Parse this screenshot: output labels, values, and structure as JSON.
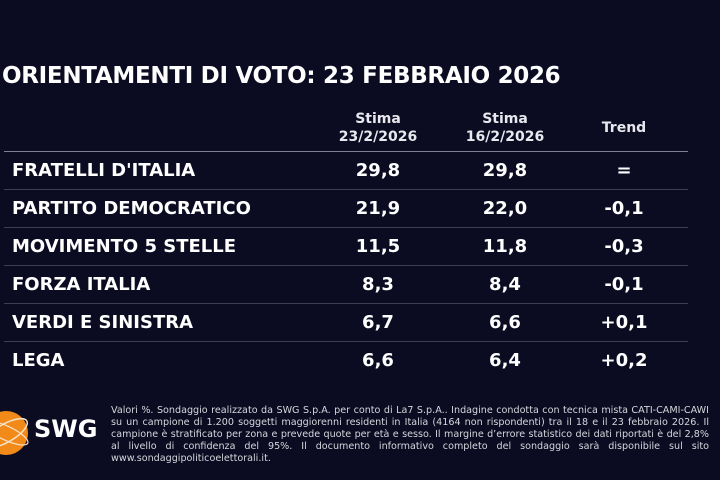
{
  "title": "ORIENTAMENTI DI VOTO: 23 FEBBRAIO 2026",
  "chart_data": {
    "type": "table",
    "columns": [
      {
        "line1": "Stima",
        "line2": "23/2/2026"
      },
      {
        "line1": "Stima",
        "line2": "16/2/2026"
      },
      {
        "line1": "Trend",
        "line2": ""
      }
    ],
    "rows": [
      {
        "party": "FRATELLI D'ITALIA",
        "current": "29,8",
        "previous": "29,8",
        "trend": "="
      },
      {
        "party": "PARTITO DEMOCRATICO",
        "current": "21,9",
        "previous": "22,0",
        "trend": "-0,1"
      },
      {
        "party": "MOVIMENTO 5 STELLE",
        "current": "11,5",
        "previous": "11,8",
        "trend": "-0,3"
      },
      {
        "party": "FORZA ITALIA",
        "current": "8,3",
        "previous": "8,4",
        "trend": "-0,1"
      },
      {
        "party": "VERDI E SINISTRA",
        "current": "6,7",
        "previous": "6,6",
        "trend": "+0,1"
      },
      {
        "party": "LEGA",
        "current": "6,6",
        "previous": "6,4",
        "trend": "+0,2"
      }
    ]
  },
  "logo": {
    "text": "SWG",
    "color": "#f28a1a"
  },
  "footnote": "Valori %. Sondaggio realizzato da SWG S.p.A. per conto di La7 S.p.A.. Indagine condotta con tecnica mista CATI-CAMI-CAWI su un campione di 1.200 soggetti maggiorenni residenti in Italia (4164 non rispondenti) tra il 18 e il 23 febbraio 2026. Il campione è stratificato per zona e prevede quote per età e sesso. Il margine d’errore statistico dei dati riportati è del 2,8% al livello di confidenza del 95%. Il documento informativo completo del sondaggio sarà disponibile sul sito www.sondaggipoliticoelettorali.it.",
  "colors": {
    "background": "#0b0c22",
    "text": "#ffffff"
  }
}
